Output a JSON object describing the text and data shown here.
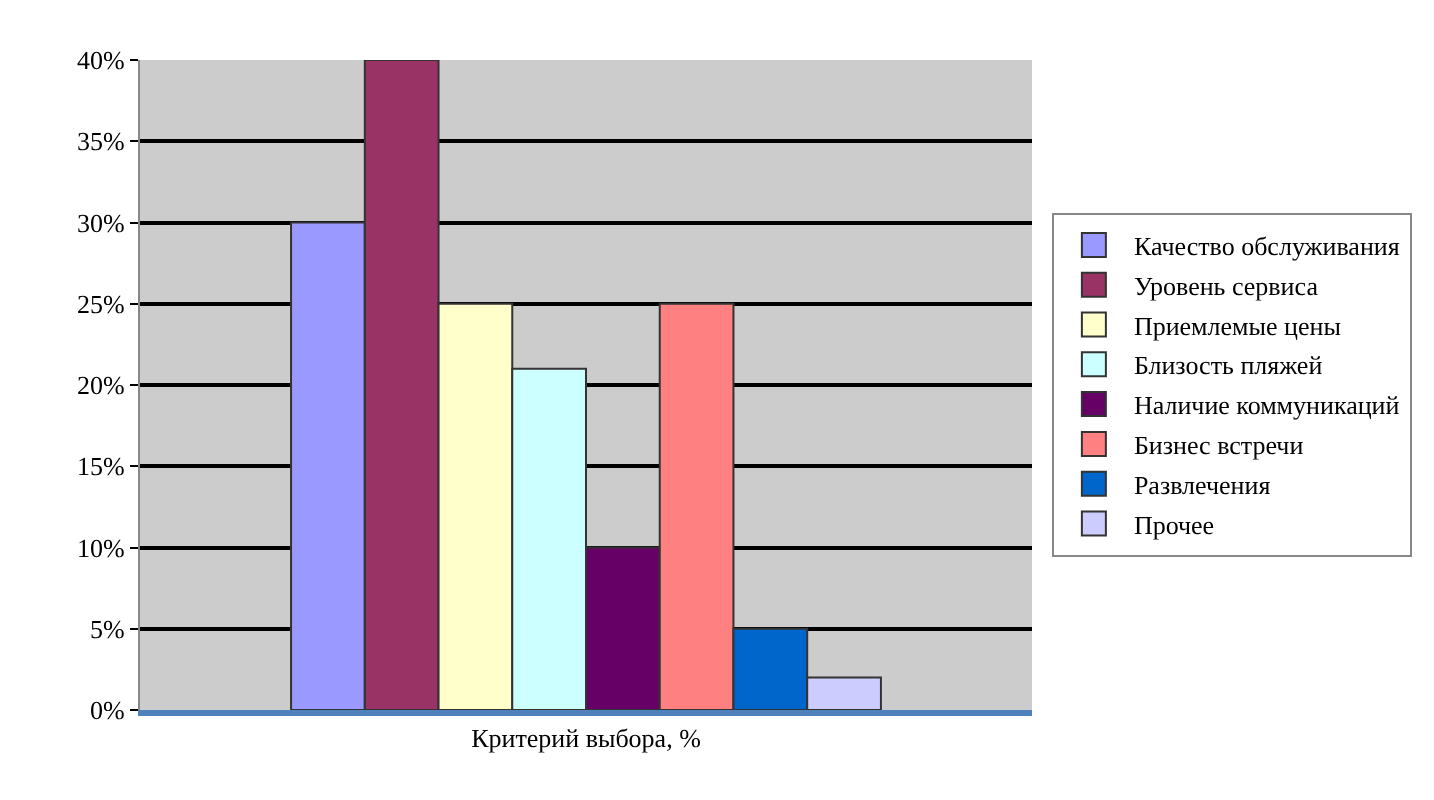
{
  "chart_data": {
    "type": "bar",
    "categories": [
      "Критерий выбора, %"
    ],
    "series": [
      {
        "name": "Качество обслуживания",
        "color": "#9999ff",
        "values": [
          30
        ]
      },
      {
        "name": "Уровень сервиса",
        "color": "#993366",
        "values": [
          40
        ]
      },
      {
        "name": "Приемлемые цены",
        "color": "#ffffcc",
        "values": [
          25
        ]
      },
      {
        "name": "Близость пляжей",
        "color": "#ccffff",
        "values": [
          21
        ]
      },
      {
        "name": "Наличие коммуникаций",
        "color": "#660066",
        "values": [
          10
        ]
      },
      {
        "name": "Бизнес встречи",
        "color": "#ff8080",
        "values": [
          25
        ]
      },
      {
        "name": "Развлечения",
        "color": "#0066cc",
        "values": [
          5
        ]
      },
      {
        "name": "Прочее",
        "color": "#ccccff",
        "values": [
          2
        ]
      }
    ],
    "ylim": [
      0,
      40
    ],
    "yticks": [
      {
        "value": 0,
        "label": "0%"
      },
      {
        "value": 5,
        "label": "5%"
      },
      {
        "value": 10,
        "label": "10%"
      },
      {
        "value": 15,
        "label": "15%"
      },
      {
        "value": 20,
        "label": "20%"
      },
      {
        "value": 25,
        "label": "25%"
      },
      {
        "value": 30,
        "label": "30%"
      },
      {
        "value": 35,
        "label": "35%"
      },
      {
        "value": 40,
        "label": "40%"
      }
    ],
    "grid": "y",
    "legend": "right"
  }
}
